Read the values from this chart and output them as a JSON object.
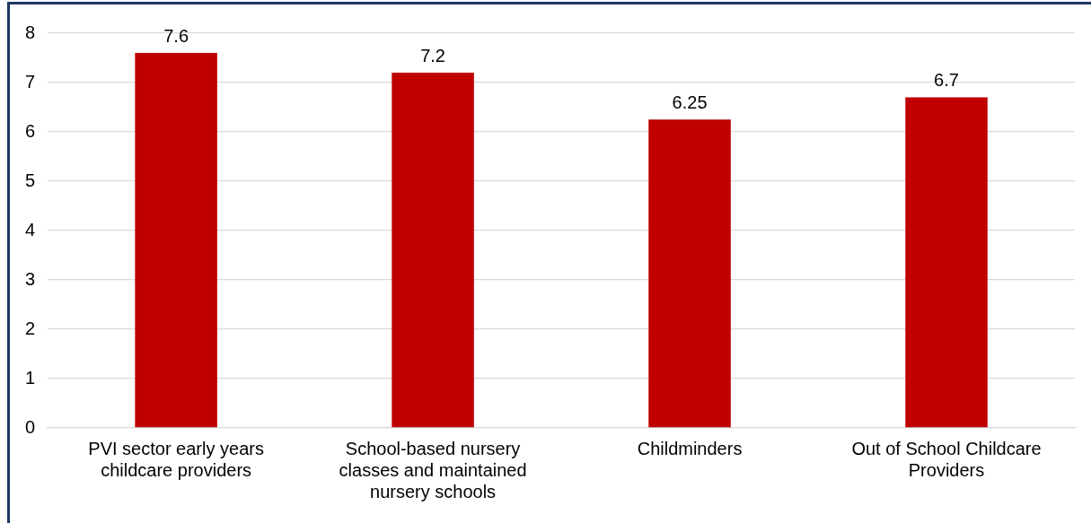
{
  "chart_data": {
    "type": "bar",
    "categories": [
      "PVI sector early years childcare providers",
      "School-based nursery classes and maintained nursery schools",
      "Childminders",
      "Out of School Childcare Providers"
    ],
    "values": [
      7.6,
      7.2,
      6.25,
      6.7
    ],
    "color": "#c00000",
    "ylim": [
      0,
      8
    ],
    "yticks": [
      0,
      1,
      2,
      3,
      4,
      5,
      6,
      7,
      8
    ],
    "grid": "y",
    "legend": false,
    "data_labels": true
  }
}
